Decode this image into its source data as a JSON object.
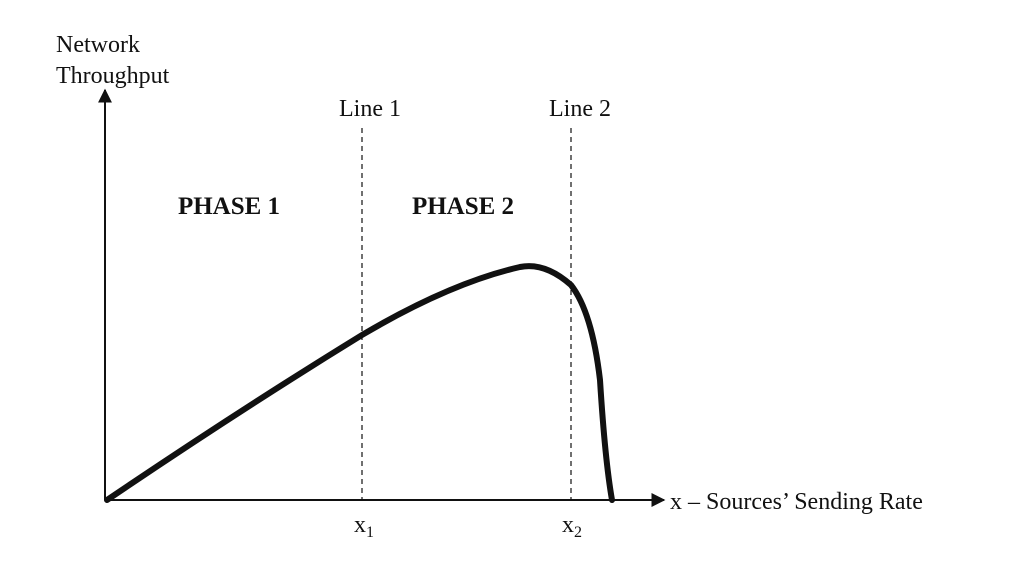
{
  "y_axis": {
    "title_line1": "Network",
    "title_line2": "Throughput"
  },
  "x_axis": {
    "title": "x – Sources’ Sending Rate"
  },
  "reference_lines": [
    {
      "label": "Line 1",
      "tick_base": "x",
      "tick_sub": "1"
    },
    {
      "label": "Line 2",
      "tick_base": "x",
      "tick_sub": "2"
    }
  ],
  "phases": [
    {
      "label": "PHASE 1"
    },
    {
      "label": "PHASE 2"
    }
  ],
  "colors": {
    "ink": "#111111",
    "background": "#ffffff"
  }
}
